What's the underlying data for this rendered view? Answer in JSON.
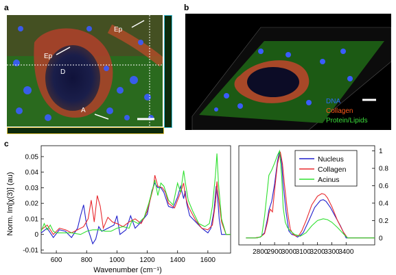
{
  "panel_labels": {
    "a": "a",
    "b": "b",
    "c": "c"
  },
  "panel_a": {
    "annotations": {
      "ep1": "Ep",
      "ep2": "Ep",
      "d": "D",
      "a": "A"
    }
  },
  "panel_b": {
    "legend": [
      {
        "label": "DNA",
        "color": "#2a6bff"
      },
      {
        "label": "Collagen",
        "color": "#ff5a1a"
      },
      {
        "label": "Protein/Lipids",
        "color": "#3ce03c"
      }
    ]
  },
  "colors": {
    "nucleus": "#1f1fcc",
    "collagen": "#e8282d",
    "acinus": "#2ee02e"
  },
  "chart_data": [
    {
      "type": "line",
      "xlabel": "Wavenumber (cm⁻¹)",
      "ylabel": "Norm. Im[χ(3)] (au)",
      "xlim": [
        500,
        1750
      ],
      "ylim": [
        -0.012,
        0.057
      ],
      "xticks": [
        600,
        800,
        1000,
        1200,
        1400,
        1600
      ],
      "yticks": [
        -0.01,
        0,
        0.01,
        0.02,
        0.03,
        0.04,
        0.05
      ],
      "ytick_labels": [
        "-0.01",
        "0",
        "0.01",
        "0.02",
        "0.03",
        "0.04",
        "0.05"
      ],
      "series": [
        {
          "name": "Nucleus",
          "x": [
            500,
            540,
            580,
            620,
            660,
            700,
            740,
            760,
            780,
            800,
            820,
            840,
            860,
            880,
            900,
            940,
            980,
            1000,
            1020,
            1060,
            1090,
            1120,
            1160,
            1200,
            1230,
            1250,
            1270,
            1290,
            1310,
            1340,
            1370,
            1400,
            1420,
            1440,
            1450,
            1460,
            1480,
            1520,
            1560,
            1600,
            1620,
            1640,
            1655,
            1665,
            1675,
            1690,
            1720,
            1750
          ],
          "y": [
            0.001,
            0.004,
            -0.002,
            0.003,
            0.002,
            -0.002,
            0.004,
            0.012,
            0.019,
            0.006,
            0.0,
            -0.006,
            -0.003,
            0.005,
            0.002,
            0.004,
            0.006,
            0.012,
            0.0,
            0.003,
            0.012,
            0.004,
            0.008,
            0.013,
            0.028,
            0.033,
            0.03,
            0.03,
            0.027,
            0.018,
            0.017,
            0.024,
            0.031,
            0.023,
            0.028,
            0.02,
            0.012,
            0.008,
            0.004,
            0.001,
            0.004,
            0.015,
            0.031,
            0.023,
            0.01,
            0.0,
            0.0,
            0.0
          ]
        },
        {
          "name": "Collagen",
          "x": [
            500,
            540,
            580,
            620,
            660,
            700,
            740,
            780,
            810,
            830,
            850,
            870,
            890,
            910,
            940,
            970,
            1000,
            1040,
            1080,
            1120,
            1160,
            1200,
            1240,
            1250,
            1270,
            1300,
            1320,
            1340,
            1380,
            1420,
            1440,
            1450,
            1470,
            1520,
            1560,
            1600,
            1630,
            1650,
            1660,
            1670,
            1690,
            1720,
            1750
          ],
          "y": [
            0.003,
            0.006,
            0.0,
            0.004,
            0.003,
            0.001,
            0.003,
            0.005,
            0.01,
            0.022,
            0.008,
            0.025,
            0.018,
            0.004,
            0.011,
            0.008,
            0.007,
            0.005,
            0.008,
            0.01,
            0.007,
            0.015,
            0.03,
            0.038,
            0.031,
            0.03,
            0.027,
            0.02,
            0.017,
            0.027,
            0.033,
            0.025,
            0.018,
            0.009,
            0.004,
            0.003,
            0.006,
            0.02,
            0.034,
            0.024,
            0.008,
            0.0,
            0.0
          ]
        },
        {
          "name": "Acinus",
          "x": [
            500,
            520,
            540,
            560,
            580,
            600,
            640,
            700,
            760,
            800,
            840,
            880,
            920,
            960,
            1000,
            1040,
            1080,
            1100,
            1140,
            1180,
            1210,
            1240,
            1250,
            1270,
            1290,
            1310,
            1340,
            1370,
            1400,
            1420,
            1440,
            1450,
            1470,
            1500,
            1540,
            1580,
            1610,
            1630,
            1650,
            1660,
            1670,
            1690,
            1720,
            1750
          ],
          "y": [
            0.002,
            0.007,
            0.003,
            0.006,
            0.002,
            0.001,
            0.001,
            0.001,
            0.0,
            0.002,
            0.003,
            0.003,
            0.002,
            0.002,
            0.004,
            0.005,
            0.004,
            0.009,
            0.007,
            0.011,
            0.02,
            0.031,
            0.035,
            0.025,
            0.033,
            0.031,
            0.022,
            0.019,
            0.033,
            0.027,
            0.041,
            0.034,
            0.022,
            0.015,
            0.007,
            0.005,
            0.007,
            0.018,
            0.038,
            0.052,
            0.033,
            0.01,
            0.0,
            0.0
          ]
        }
      ]
    },
    {
      "type": "line",
      "xlim": [
        2650,
        3600
      ],
      "ylim": [
        -0.08,
        1.06
      ],
      "xticks": [
        2800,
        2900,
        3000,
        3100,
        3200,
        3300,
        3400
      ],
      "yticks": [
        0,
        0.2,
        0.4,
        0.6,
        0.8,
        1
      ],
      "ytick_labels": [
        "0",
        "0.2",
        "0.4",
        "0.6",
        "0.8",
        "1"
      ],
      "legend_position": "top-right",
      "series": [
        {
          "name": "Nucleus",
          "x": [
            2700,
            2760,
            2800,
            2830,
            2850,
            2860,
            2880,
            2900,
            2920,
            2935,
            2950,
            2960,
            2980,
            3000,
            3020,
            3040,
            3060,
            3080,
            3100,
            3140,
            3180,
            3220,
            3240,
            3260,
            3290,
            3320,
            3360,
            3400,
            3600
          ],
          "y": [
            0,
            0,
            0.01,
            0.06,
            0.22,
            0.32,
            0.42,
            0.62,
            0.88,
            1.0,
            0.85,
            0.62,
            0.3,
            0.08,
            0.04,
            0.03,
            0.01,
            0.03,
            0.06,
            0.2,
            0.35,
            0.43,
            0.44,
            0.42,
            0.35,
            0.26,
            0.14,
            0.0,
            0.0
          ]
        },
        {
          "name": "Collagen",
          "x": [
            2700,
            2760,
            2800,
            2830,
            2850,
            2860,
            2870,
            2885,
            2900,
            2920,
            2940,
            2955,
            2970,
            2990,
            3010,
            3030,
            3050,
            3070,
            3090,
            3120,
            3160,
            3200,
            3230,
            3250,
            3270,
            3300,
            3340,
            3380,
            3410,
            3600
          ],
          "y": [
            0,
            0,
            0.01,
            0.05,
            0.18,
            0.28,
            0.33,
            0.3,
            0.55,
            0.85,
            0.99,
            0.85,
            0.6,
            0.3,
            0.1,
            0.04,
            0.02,
            0.03,
            0.08,
            0.2,
            0.38,
            0.48,
            0.51,
            0.5,
            0.46,
            0.36,
            0.2,
            0.07,
            0.0,
            0.0
          ]
        },
        {
          "name": "Acinus",
          "x": [
            2700,
            2780,
            2810,
            2830,
            2845,
            2860,
            2880,
            2900,
            2920,
            2935,
            2950,
            2960,
            2975,
            2990,
            3010,
            3040,
            3080,
            3120,
            3160,
            3200,
            3240,
            3270,
            3300,
            3340,
            3380,
            3410,
            3600
          ],
          "y": [
            0,
            0,
            0.02,
            0.25,
            0.48,
            0.72,
            0.78,
            0.86,
            0.95,
            1.0,
            0.7,
            0.35,
            0.18,
            0.12,
            0.08,
            0.04,
            0.02,
            0.06,
            0.14,
            0.2,
            0.22,
            0.21,
            0.18,
            0.12,
            0.05,
            0.0,
            0.0
          ]
        }
      ]
    }
  ]
}
